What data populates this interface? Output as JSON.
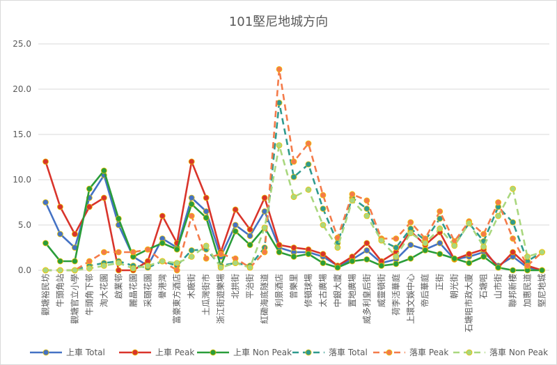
{
  "chart_data": {
    "type": "line",
    "title": "101堅尼地城方向",
    "xlabel": "",
    "ylabel": "",
    "ylim": [
      0,
      25
    ],
    "yticks": [
      "0.0",
      "5.0",
      "10.0",
      "15.0",
      "20.0",
      "25.0"
    ],
    "grid": true,
    "legend_position": "bottom",
    "categories": [
      "觀塘裕民坊",
      "牛頭角站",
      "觀塘官立小學",
      "牛頭角下邨",
      "淘大花園",
      "啟業邨",
      "麗晶花園",
      "采頤花園",
      "譽港灣",
      "富豪東方酒店",
      "木廠街",
      "土瓜灣街市",
      "浙江街遊樂場",
      "北拱街",
      "平治街",
      "紅磡海底隧道",
      "利景酒店",
      "曾樂里",
      "修頓球場",
      "太古廣場",
      "中銀大廈",
      "置地廣場",
      "威多利皇后街",
      "威靈頓街",
      "荷李活華庭",
      "上環文娛中心",
      "帝后華庭",
      "正街",
      "朝光街",
      "石塘咀市政大廈",
      "石塘咀",
      "山市街",
      "聯邦新樓",
      "加惠民道",
      "堅尼地城"
    ],
    "series": [
      {
        "name": "上車 Total",
        "color": "#4472c4",
        "style": "solid",
        "values": [
          7.5,
          4,
          2.5,
          8,
          10.5,
          5,
          1.5,
          0.5,
          3.5,
          2.5,
          8,
          6.5,
          1.5,
          5,
          3.8,
          6.5,
          2.5,
          2,
          2,
          1.5,
          0.5,
          1.2,
          2.2,
          0.8,
          1.2,
          2.8,
          2.3,
          3,
          1.2,
          1.5,
          2,
          0.5,
          1.5,
          0.3,
          0
        ]
      },
      {
        "name": "上車 Peak",
        "color": "#d9342b",
        "style": "solid",
        "values": [
          12,
          7,
          4,
          7,
          8,
          0,
          0,
          1,
          6,
          3,
          12,
          8,
          2,
          6.7,
          4.5,
          8,
          2.8,
          2.5,
          2.3,
          1.8,
          0.5,
          1.5,
          3,
          1,
          2,
          4.3,
          2.8,
          4.2,
          1.2,
          1.8,
          2.3,
          0.3,
          2,
          0.5,
          0
        ]
      },
      {
        "name": "上車 Non Peak",
        "color": "#2a9d3a",
        "style": "solid",
        "values": [
          3,
          1,
          1,
          9,
          11,
          5.7,
          1.5,
          2.3,
          3,
          2.3,
          7.3,
          5.8,
          0.5,
          4.3,
          2.8,
          4.7,
          2,
          1.5,
          1.8,
          0.8,
          0.3,
          1,
          1.2,
          0.5,
          0.7,
          1.3,
          2.2,
          1.8,
          1.3,
          0.8,
          1.5,
          0.3,
          0,
          0,
          0
        ]
      },
      {
        "name": "落車 Total",
        "color": "#2e9a8e",
        "style": "dash",
        "values": [
          0,
          0,
          0,
          0.5,
          0.8,
          1,
          0.5,
          0.3,
          1,
          0.5,
          2.2,
          2.3,
          0.5,
          0.8,
          0.5,
          2.5,
          18.5,
          10.3,
          11.7,
          6.8,
          3,
          8,
          6.8,
          3.3,
          2.5,
          4.6,
          3.3,
          5.7,
          2.8,
          5.2,
          3.2,
          7,
          5.3,
          1,
          2
        ]
      },
      {
        "name": "落車 Peak",
        "color": "#f47b4a",
        "style": "dash",
        "values": [
          0,
          0,
          0,
          1,
          2,
          2,
          2,
          2.3,
          1,
          0,
          6,
          1.3,
          1.8,
          1.3,
          0.3,
          2,
          22.2,
          12,
          14,
          8.3,
          3.6,
          8.4,
          7.7,
          3.5,
          3.5,
          5.3,
          3.5,
          6.5,
          3.2,
          5.4,
          4,
          7.5,
          3.5,
          0.5,
          2
        ]
      },
      {
        "name": "落車 Non Peak",
        "color": "#a9d77e",
        "style": "dash",
        "values": [
          0,
          0,
          0,
          0.2,
          0.5,
          0.8,
          0.2,
          0.5,
          1,
          0.8,
          1.5,
          2.7,
          0.3,
          0.8,
          0.3,
          4.7,
          13.8,
          8.1,
          8.9,
          5,
          2.5,
          7.7,
          6,
          3.3,
          1.5,
          4.1,
          3,
          4.6,
          2.7,
          5.2,
          2.6,
          6,
          9,
          1.5,
          2
        ]
      }
    ]
  }
}
